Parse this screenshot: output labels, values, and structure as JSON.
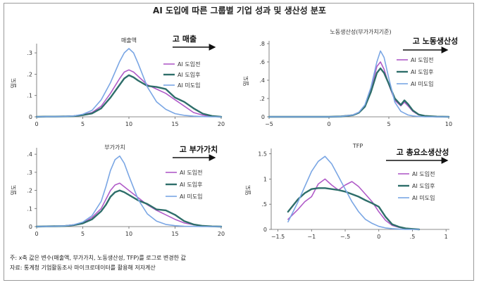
{
  "figure": {
    "title": "AI 도입에 따른 그룹별 기업 성과 및 생산성 분포"
  },
  "notes": {
    "note": "주: x축 값은 변수(매출액, 부가가치, 노동생산성, TFP)를 로그로 변경한 값",
    "source": "자료: 통계청 기업활동조사 마이크로데이터를 활용해 저자계산"
  },
  "colors": {
    "before": "#b05bc8",
    "after": "#2e6e6a",
    "none": "#7aa6e4",
    "arrow": "#111111"
  },
  "chart_data": [
    {
      "type": "line",
      "subtitle": "매출액",
      "caption": "고 매출",
      "ylabel": "밀도",
      "xlim": [
        0,
        20
      ],
      "ylim": [
        0,
        0.33
      ],
      "xticks": [
        0,
        5,
        10,
        15,
        20
      ],
      "xtick_labels": [
        "0",
        "5",
        "10",
        "15",
        "20"
      ],
      "yticks": [
        0,
        0.1,
        0.2,
        0.3
      ],
      "ytick_labels": [
        "0",
        ".1",
        ".2",
        ".3"
      ],
      "legend_position": "right",
      "x": [
        0,
        1,
        2,
        3,
        4,
        5,
        6,
        7,
        8,
        9,
        9.5,
        10,
        10.5,
        11,
        12,
        13,
        14,
        15,
        16,
        17,
        18,
        19,
        20
      ],
      "series": [
        {
          "name": "AI 도입전",
          "color_key": "before",
          "values": [
            0,
            0.001,
            0.001,
            0.002,
            0.004,
            0.01,
            0.02,
            0.05,
            0.11,
            0.18,
            0.21,
            0.22,
            0.21,
            0.19,
            0.15,
            0.13,
            0.11,
            0.08,
            0.05,
            0.02,
            0.008,
            0.002,
            0
          ]
        },
        {
          "name": "AI 도입후",
          "color_key": "after",
          "values": [
            0,
            0.001,
            0.001,
            0.002,
            0.003,
            0.008,
            0.016,
            0.04,
            0.09,
            0.15,
            0.18,
            0.195,
            0.185,
            0.17,
            0.145,
            0.14,
            0.13,
            0.09,
            0.07,
            0.04,
            0.015,
            0.004,
            0
          ]
        },
        {
          "name": "AI 미도입",
          "color_key": "none",
          "values": [
            0,
            0.001,
            0.001,
            0.002,
            0.004,
            0.012,
            0.03,
            0.08,
            0.16,
            0.26,
            0.3,
            0.32,
            0.3,
            0.25,
            0.14,
            0.07,
            0.035,
            0.015,
            0.007,
            0.003,
            0.001,
            0,
            0
          ]
        }
      ]
    },
    {
      "type": "line",
      "subtitle": "노동생산성(부가가치기준)",
      "caption": "고 노동생산성",
      "ylabel": "밀도",
      "xlim": [
        -5,
        10
      ],
      "ylim": [
        0,
        0.8
      ],
      "xticks": [
        -5,
        0,
        5,
        10
      ],
      "xtick_labels": [
        "−5",
        "0",
        "5",
        "10"
      ],
      "yticks": [
        0,
        0.2,
        0.4,
        0.6,
        0.8
      ],
      "ytick_labels": [
        "0",
        ".2",
        ".4",
        ".6",
        ".8"
      ],
      "legend_position": "right",
      "x": [
        -5,
        -3,
        -1,
        0,
        1,
        2,
        2.5,
        3,
        3.5,
        4,
        4.3,
        4.6,
        5,
        5.5,
        6,
        6.3,
        6.6,
        7,
        7.5,
        8,
        9,
        10
      ],
      "series": [
        {
          "name": "AI 도입전",
          "color_key": "before",
          "values": [
            0,
            0,
            0,
            0,
            0.005,
            0.02,
            0.05,
            0.12,
            0.3,
            0.55,
            0.6,
            0.52,
            0.35,
            0.18,
            0.12,
            0.16,
            0.12,
            0.06,
            0.02,
            0.008,
            0.001,
            0
          ]
        },
        {
          "name": "AI 도입후",
          "color_key": "after",
          "values": [
            0,
            0,
            0,
            0,
            0.004,
            0.018,
            0.045,
            0.11,
            0.27,
            0.48,
            0.53,
            0.48,
            0.36,
            0.2,
            0.13,
            0.18,
            0.14,
            0.07,
            0.025,
            0.01,
            0.002,
            0
          ]
        },
        {
          "name": "AI 미도입",
          "color_key": "none",
          "values": [
            0,
            0,
            0,
            0,
            0.004,
            0.02,
            0.05,
            0.13,
            0.32,
            0.6,
            0.72,
            0.65,
            0.42,
            0.16,
            0.06,
            0.04,
            0.02,
            0.01,
            0.004,
            0.001,
            0,
            0
          ]
        }
      ]
    },
    {
      "type": "line",
      "subtitle": "부가가치",
      "caption": "고 부가가치",
      "ylabel": "밀도",
      "xlim": [
        0,
        20
      ],
      "ylim": [
        0,
        0.42
      ],
      "xticks": [
        0,
        5,
        10,
        15,
        20
      ],
      "xtick_labels": [
        "0",
        "5",
        "10",
        "15",
        "20"
      ],
      "yticks": [
        0,
        0.1,
        0.2,
        0.3,
        0.4
      ],
      "ytick_labels": [
        "0",
        ".1",
        ".2",
        ".3",
        ".4"
      ],
      "legend_position": "right",
      "x": [
        0,
        1,
        2,
        3,
        4,
        5,
        6,
        7,
        7.5,
        8,
        8.5,
        9,
        9.5,
        10,
        11,
        12,
        13,
        14,
        15,
        16,
        17,
        18,
        19,
        20
      ],
      "series": [
        {
          "name": "AI 도입전",
          "color_key": "before",
          "values": [
            0,
            0.001,
            0.002,
            0.004,
            0.01,
            0.02,
            0.05,
            0.1,
            0.15,
            0.2,
            0.23,
            0.24,
            0.22,
            0.2,
            0.16,
            0.12,
            0.09,
            0.065,
            0.04,
            0.02,
            0.01,
            0.004,
            0.001,
            0
          ]
        },
        {
          "name": "AI 도입후",
          "color_key": "after",
          "values": [
            0,
            0.001,
            0.002,
            0.003,
            0.008,
            0.018,
            0.04,
            0.085,
            0.12,
            0.165,
            0.19,
            0.2,
            0.19,
            0.175,
            0.145,
            0.125,
            0.095,
            0.09,
            0.065,
            0.03,
            0.012,
            0.004,
            0.001,
            0
          ]
        },
        {
          "name": "AI 미도입",
          "color_key": "none",
          "values": [
            0,
            0.001,
            0.002,
            0.004,
            0.01,
            0.025,
            0.06,
            0.14,
            0.22,
            0.31,
            0.37,
            0.39,
            0.35,
            0.28,
            0.15,
            0.07,
            0.03,
            0.012,
            0.005,
            0.002,
            0.001,
            0,
            0,
            0
          ]
        }
      ]
    },
    {
      "type": "line",
      "subtitle": "TFP",
      "caption": "고 총요소생산성",
      "ylabel": "밀도",
      "xlim": [
        -1.6,
        1.05
      ],
      "ylim": [
        0,
        1.55
      ],
      "xticks": [
        -1.5,
        -1,
        -0.5,
        0,
        0.5,
        1
      ],
      "xtick_labels": [
        "−1.5",
        "−1",
        "−.5",
        "0",
        ".5",
        "1"
      ],
      "yticks": [
        0,
        0.5,
        1,
        1.5
      ],
      "ytick_labels": [
        "0",
        ".5",
        "1",
        "1.5"
      ],
      "legend_position": "right",
      "x": [
        -1.35,
        -1.2,
        -1.1,
        -1,
        -0.9,
        -0.8,
        -0.7,
        -0.6,
        -0.5,
        -0.4,
        -0.3,
        -0.2,
        -0.1,
        0,
        0.1,
        0.2,
        0.3,
        0.4,
        0.5,
        0.6
      ],
      "series": [
        {
          "name": "AI 도입전",
          "color_key": "before",
          "values": [
            0.2,
            0.4,
            0.55,
            0.65,
            0.9,
            1,
            0.88,
            0.78,
            0.88,
            0.95,
            0.85,
            0.7,
            0.55,
            0.35,
            0.18,
            0.08,
            0.04,
            0.015,
            0.005,
            0
          ]
        },
        {
          "name": "AI 도입후",
          "color_key": "after",
          "values": [
            0.35,
            0.6,
            0.72,
            0.8,
            0.82,
            0.82,
            0.8,
            0.78,
            0.75,
            0.7,
            0.65,
            0.58,
            0.52,
            0.45,
            0.25,
            0.1,
            0.05,
            0.02,
            0.01,
            0
          ]
        },
        {
          "name": "AI 미도입",
          "color_key": "none",
          "values": [
            0.15,
            0.55,
            0.85,
            1.15,
            1.35,
            1.45,
            1.3,
            1.05,
            0.8,
            0.55,
            0.35,
            0.2,
            0.12,
            0.06,
            0.03,
            0.015,
            0.005,
            0,
            0,
            0
          ]
        }
      ]
    }
  ]
}
